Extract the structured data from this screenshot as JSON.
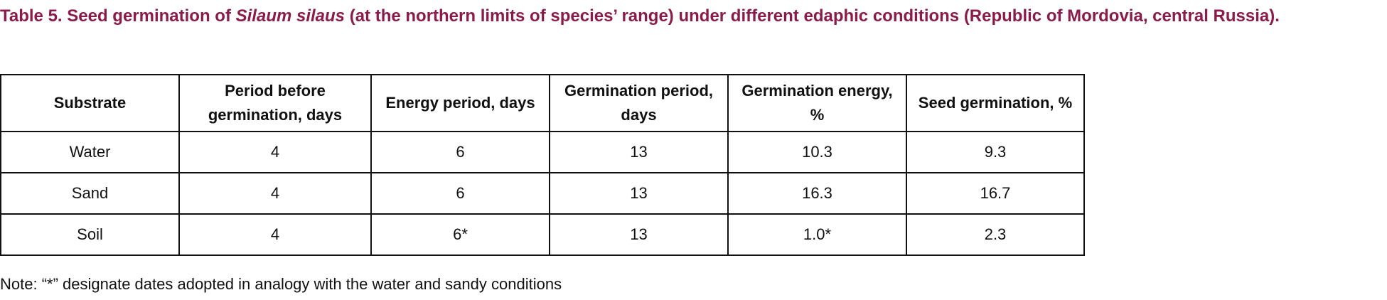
{
  "title": {
    "prefix": "Table 5. Seed germination of ",
    "species": "Silaum silaus",
    "suffix": " (at the northern limits of species’ range) under different edaphic conditions (Republic of Mordovia, central Russia)."
  },
  "table": {
    "headers": [
      "Substrate",
      "Period before germination, days",
      "Energy period, days",
      "Germination period, days",
      "Germination energy, %",
      "Seed germination, %"
    ],
    "rows": [
      [
        "Water",
        "4",
        "6",
        "13",
        "10.3",
        "9.3"
      ],
      [
        "Sand",
        "4",
        "6",
        "13",
        "16.3",
        "16.7"
      ],
      [
        "Soil",
        "4",
        "6*",
        "13",
        "1.0*",
        "2.3"
      ]
    ]
  },
  "note": "Note: “*” designate dates adopted in analogy with the water and sandy conditions",
  "colors": {
    "title": "#8a1b4a",
    "text": "#111111",
    "border": "#111111"
  }
}
